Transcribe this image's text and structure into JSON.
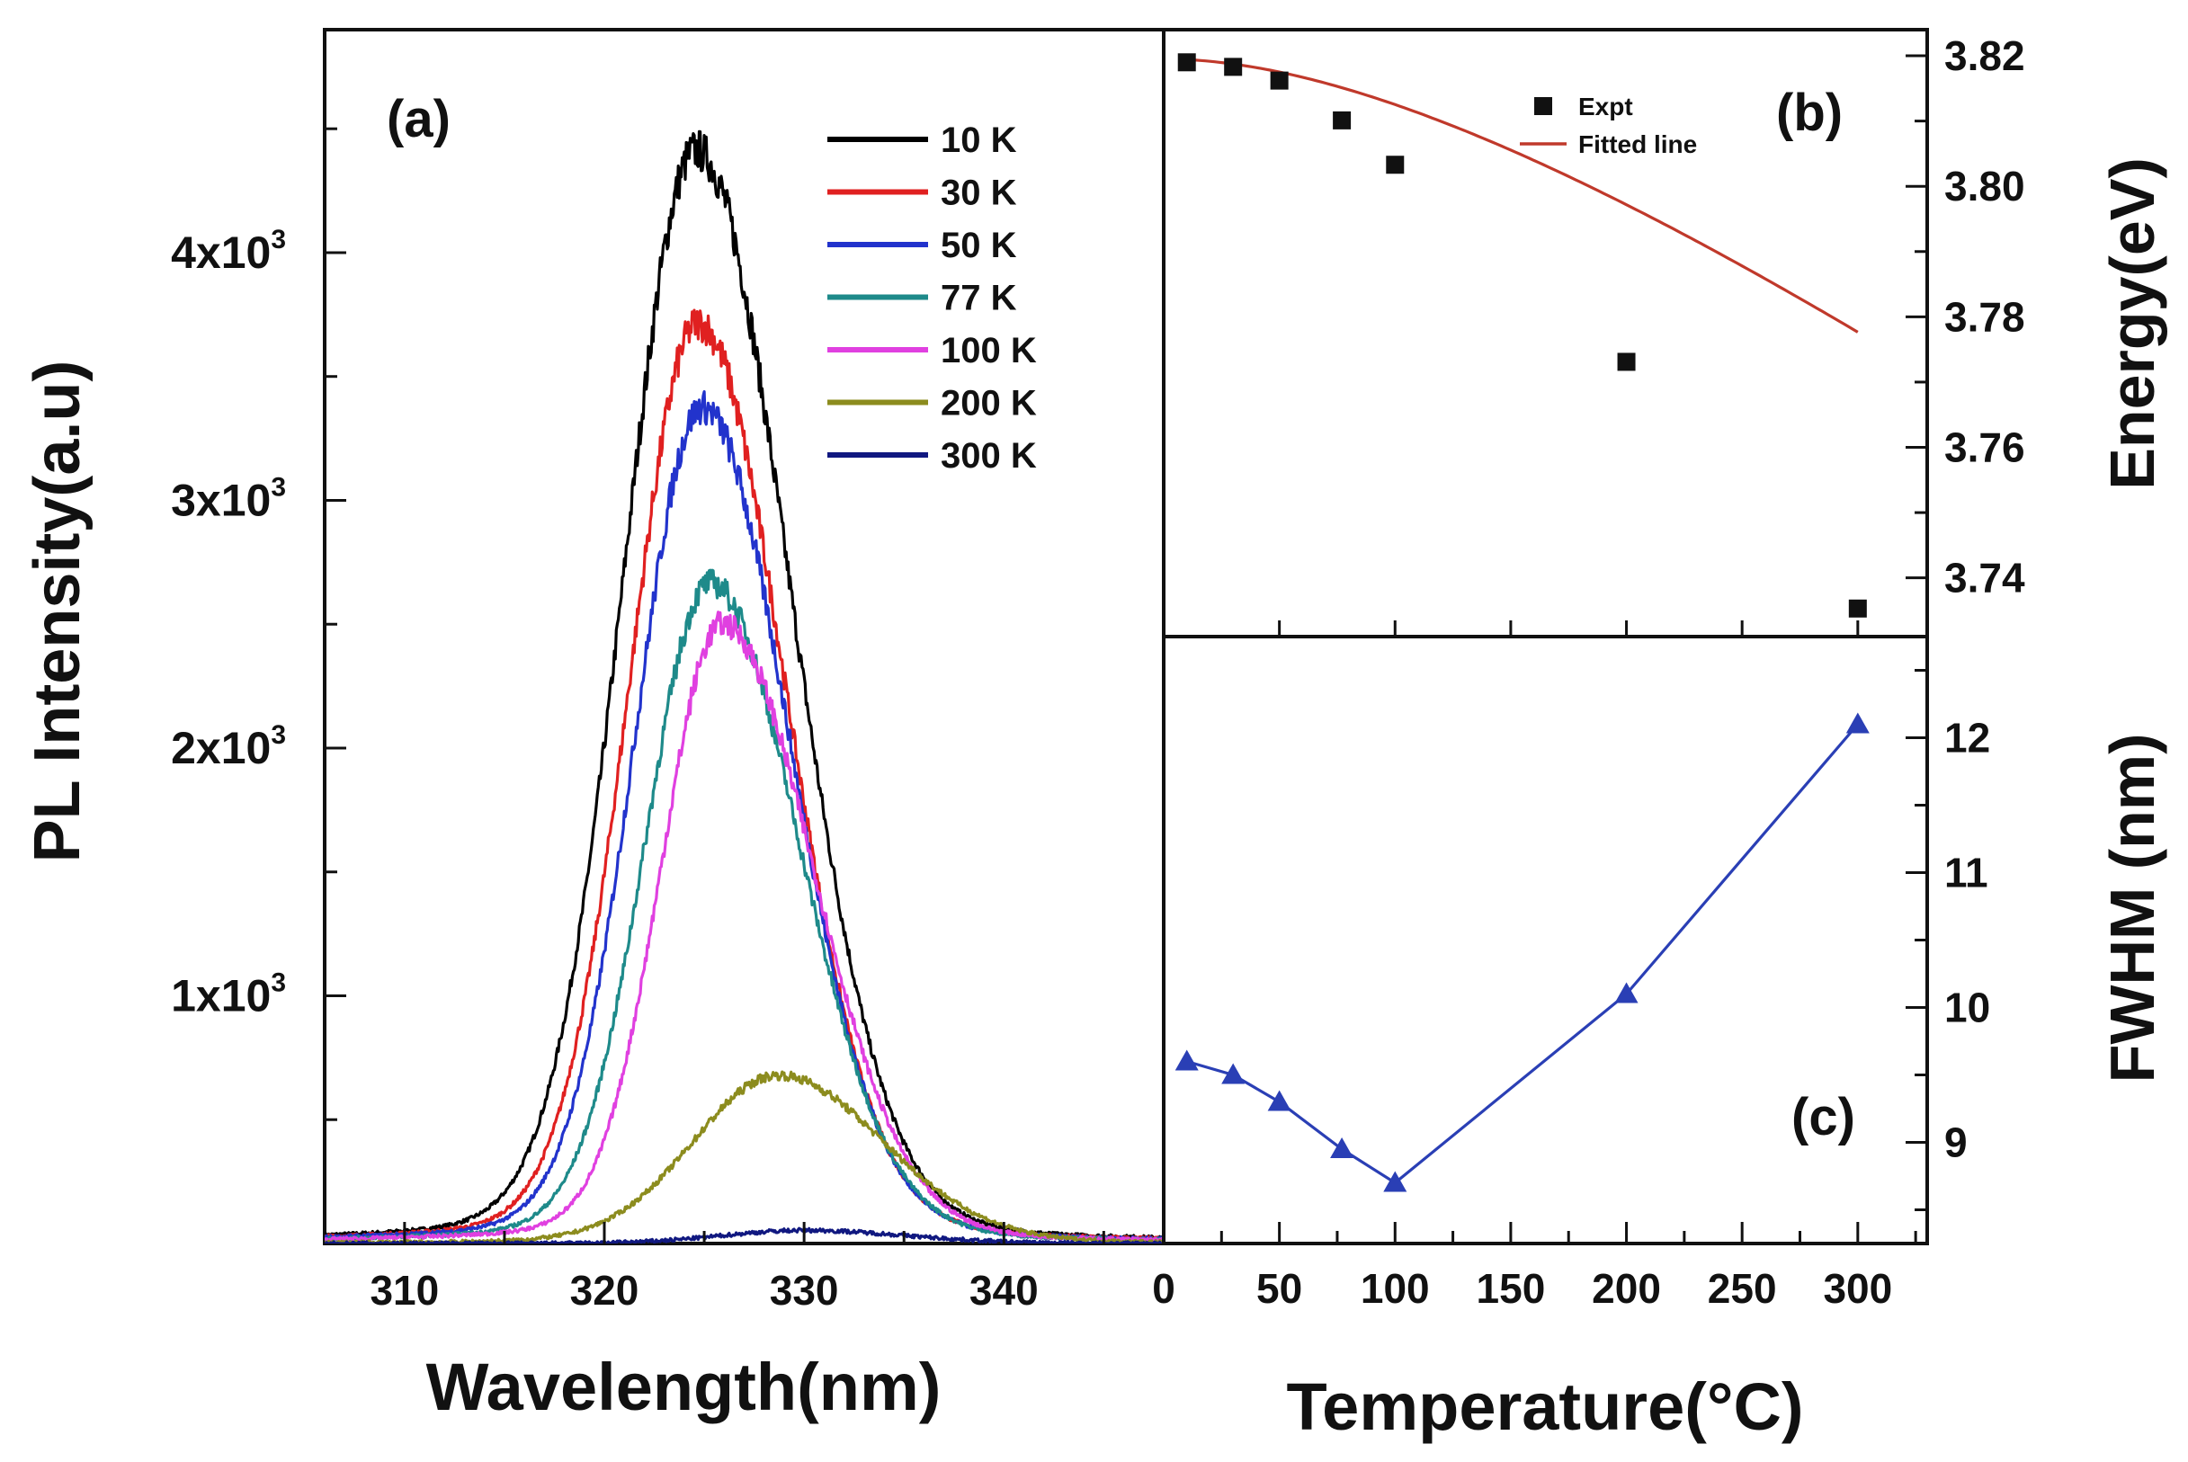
{
  "chart_data": [
    {
      "panel": "(a)",
      "type": "line",
      "xlabel": "Wavelength(nm)",
      "ylabel": "PL Intensity(a.u)",
      "xlim": [
        306,
        348
      ],
      "ylim": [
        0,
        4900
      ],
      "xticks": [
        310,
        320,
        330,
        340
      ],
      "xtick_labels": [
        "310",
        "320",
        "330",
        "340"
      ],
      "yticks": [
        1000,
        2000,
        3000,
        4000
      ],
      "ytick_labels": [
        {
          "base": "1x10",
          "exp": "3"
        },
        {
          "base": "2x10",
          "exp": "3"
        },
        {
          "base": "3x10",
          "exp": "3"
        },
        {
          "base": "4x10",
          "exp": "3"
        }
      ],
      "legend_position": "top-right",
      "series": [
        {
          "name": "10 K",
          "color": "#000000",
          "peak_nm": 324.6,
          "peak": 4550,
          "width_left": 3.6,
          "width_right": 4.6
        },
        {
          "name": "30 K",
          "color": "#e02020",
          "peak_nm": 324.7,
          "peak": 3830,
          "width_left": 3.4,
          "width_right": 4.3
        },
        {
          "name": "50 K",
          "color": "#2233cc",
          "peak_nm": 324.9,
          "peak": 3480,
          "width_left": 3.3,
          "width_right": 4.3
        },
        {
          "name": "77 K",
          "color": "#1e8a8a",
          "peak_nm": 325.3,
          "peak": 2750,
          "width_left": 3.2,
          "width_right": 4.4
        },
        {
          "name": "100 K",
          "color": "#e040e0",
          "peak_nm": 325.9,
          "peak": 2580,
          "width_left": 3.0,
          "width_right": 4.5
        },
        {
          "name": "200 K",
          "color": "#8c8c1e",
          "peak_nm": 328.7,
          "peak": 700,
          "width_left": 4.2,
          "width_right": 5.2
        },
        {
          "name": "300 K",
          "color": "#101880",
          "peak_nm": 330.0,
          "peak": 55,
          "width_left": 4.0,
          "width_right": 5.0
        }
      ]
    },
    {
      "panel": "(b)",
      "type": "scatter",
      "ylabel": "Energy(eV)",
      "xlim": [
        0,
        320
      ],
      "ylim": [
        3.731,
        3.824
      ],
      "yticks": [
        3.74,
        3.76,
        3.78,
        3.8,
        3.82
      ],
      "ytick_labels": [
        "3.74",
        "3.76",
        "3.78",
        "3.80",
        "3.82"
      ],
      "legend_position": "top-center",
      "series": [
        {
          "name": "Expt",
          "marker": "square",
          "color": "#111111",
          "x": [
            10,
            30,
            50,
            77,
            100,
            200,
            300
          ],
          "y": [
            3.819,
            3.8183,
            3.8162,
            3.8101,
            3.8033,
            3.7731,
            3.7353
          ]
        },
        {
          "name": "Fitted line",
          "color": "#c0392b",
          "fit": {
            "E0": 3.8195,
            "alpha": 0.000279,
            "beta": 300
          },
          "x_range": [
            10,
            300
          ]
        }
      ]
    },
    {
      "panel": "(c)",
      "type": "line",
      "xlabel": "Temperature(°C)",
      "ylabel": "FWHM (nm)",
      "xlim": [
        0,
        330
      ],
      "ylim": [
        8.25,
        12.75
      ],
      "xticks": [
        0,
        50,
        100,
        150,
        200,
        250,
        300
      ],
      "xtick_labels": [
        "0",
        "50",
        "100",
        "150",
        "200",
        "250",
        "300"
      ],
      "yticks": [
        9,
        10,
        11,
        12
      ],
      "ytick_labels": [
        "9",
        "10",
        "11",
        "12"
      ],
      "series": [
        {
          "name": "FWHM",
          "marker": "triangle",
          "color": "#2a3fb5",
          "x": [
            10,
            30,
            50,
            77,
            100,
            200,
            300
          ],
          "y": [
            9.6,
            9.5,
            9.3,
            8.95,
            8.7,
            10.1,
            12.1
          ]
        }
      ]
    }
  ]
}
